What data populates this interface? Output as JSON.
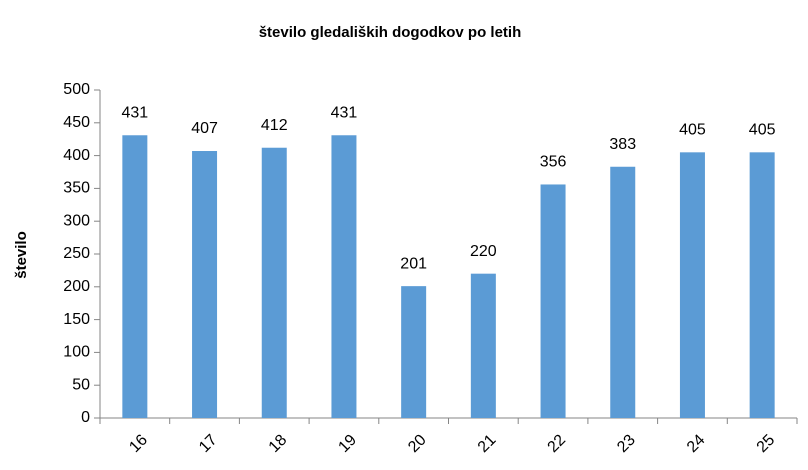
{
  "chart_data": {
    "type": "bar",
    "title": "število gledaliških dogodkov po letih",
    "ylabel": "število",
    "categories": [
      "16",
      "17",
      "18",
      "19",
      "20",
      "21",
      "22",
      "23",
      "24",
      "25"
    ],
    "values": [
      431,
      407,
      412,
      431,
      201,
      220,
      356,
      383,
      405,
      405
    ],
    "color": "#5b9bd5",
    "ylim": [
      0,
      500
    ],
    "yticks": [
      0,
      50,
      100,
      150,
      200,
      250,
      300,
      350,
      400,
      450,
      500
    ],
    "grid": false
  }
}
